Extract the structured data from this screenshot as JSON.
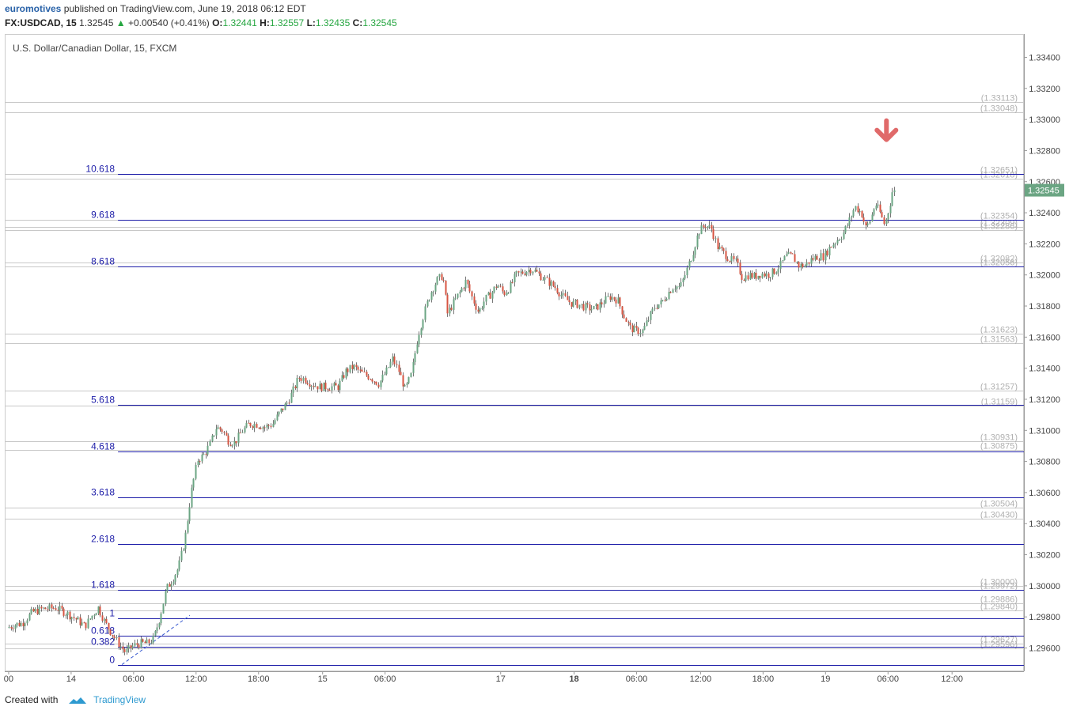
{
  "header": {
    "author": "euromotives",
    "published": "published on TradingView.com, June 19, 2018 06:12 EDT",
    "symbol": "FX:USDCAD, 15",
    "last": "1.32545",
    "change_arrow": "▲",
    "change": "+0.00540 (+0.41%)",
    "open_label": "O:",
    "open": "1.32441",
    "high_label": "H:",
    "high": "1.32557",
    "low_label": "L:",
    "low": "1.32435",
    "close_label": "C:",
    "close": "1.32545"
  },
  "footer": {
    "created_with": "Created with",
    "brand": "TradingView",
    "logo_icon": "tradingview-cloud-icon"
  },
  "colors": {
    "bull": "#6ba583",
    "bear": "#d75442",
    "fib_line": "#1c1ca8",
    "gray_line": "#c8c8c8",
    "arrow": "#e06a6a",
    "price_tag": "#6ba583"
  },
  "chart_data": {
    "type": "candlestick",
    "title": "U.S. Dollar/Canadian Dollar, 15, FXCM",
    "y_range": [
      1.2945,
      1.3355
    ],
    "x_range": [
      -5,
      1300
    ],
    "y_ticks": [
      {
        "value": 1.334,
        "label": "1.33400"
      },
      {
        "value": 1.332,
        "label": "1.33200"
      },
      {
        "value": 1.33,
        "label": "1.33000"
      },
      {
        "value": 1.328,
        "label": "1.32800"
      },
      {
        "value": 1.326,
        "label": "1.32600"
      },
      {
        "value": 1.324,
        "label": "1.32400"
      },
      {
        "value": 1.322,
        "label": "1.32200"
      },
      {
        "value": 1.32,
        "label": "1.32000"
      },
      {
        "value": 1.318,
        "label": "1.31800"
      },
      {
        "value": 1.316,
        "label": "1.31600"
      },
      {
        "value": 1.314,
        "label": "1.31400"
      },
      {
        "value": 1.312,
        "label": "1.31200"
      },
      {
        "value": 1.31,
        "label": "1.31000"
      },
      {
        "value": 1.308,
        "label": "1.30800"
      },
      {
        "value": 1.306,
        "label": "1.30600"
      },
      {
        "value": 1.304,
        "label": "1.30400"
      },
      {
        "value": 1.302,
        "label": "1.30200"
      },
      {
        "value": 1.3,
        "label": "1.30000"
      },
      {
        "value": 1.298,
        "label": "1.29800"
      },
      {
        "value": 1.296,
        "label": "1.29600"
      }
    ],
    "x_ticks": [
      {
        "value": 0,
        "label": "00",
        "bold": false
      },
      {
        "value": 80,
        "label": "14",
        "bold": false
      },
      {
        "value": 160,
        "label": "06:00",
        "bold": false
      },
      {
        "value": 240,
        "label": "12:00",
        "bold": false
      },
      {
        "value": 320,
        "label": "18:00",
        "bold": false
      },
      {
        "value": 402,
        "label": "15",
        "bold": false
      },
      {
        "value": 482,
        "label": "06:00",
        "bold": false
      },
      {
        "value": 630,
        "label": "17",
        "bold": false
      },
      {
        "value": 724,
        "label": "18",
        "bold": true
      },
      {
        "value": 804,
        "label": "06:00",
        "bold": false
      },
      {
        "value": 886,
        "label": "12:00",
        "bold": false
      },
      {
        "value": 966,
        "label": "18:00",
        "bold": false
      },
      {
        "value": 1046,
        "label": "19",
        "bold": false
      },
      {
        "value": 1126,
        "label": "06:00",
        "bold": false
      },
      {
        "value": 1208,
        "label": "12:00",
        "bold": false
      }
    ],
    "fib_levels": [
      {
        "label": "10.618",
        "price": 1.32651
      },
      {
        "label": "9.618",
        "price": 1.32354
      },
      {
        "label": "8.618",
        "price": 1.32056
      },
      {
        "label": "5.618",
        "price": 1.31163
      },
      {
        "label": "4.618",
        "price": 1.30866
      },
      {
        "label": "3.618",
        "price": 1.30569
      },
      {
        "label": "2.618",
        "price": 1.30271
      },
      {
        "label": "1.618",
        "price": 1.29974
      },
      {
        "label": "1",
        "price": 1.2979
      },
      {
        "label": "0.618",
        "price": 1.29677
      },
      {
        "label": "0.382",
        "price": 1.29607
      },
      {
        "label": "0",
        "price": 1.29493
      }
    ],
    "level_lines": [
      {
        "price": 1.33113,
        "label": "1.33113"
      },
      {
        "price": 1.33048,
        "label": "1.33048"
      },
      {
        "price": 1.32651,
        "label": "1.32651"
      },
      {
        "price": 1.32618,
        "label": "1.32618"
      },
      {
        "price": 1.32354,
        "label": "1.32354"
      },
      {
        "price": 1.32309,
        "label": "1.32309"
      },
      {
        "price": 1.32286,
        "label": "1.32286"
      },
      {
        "price": 1.32082,
        "label": "1.32082"
      },
      {
        "price": 1.32056,
        "label": "1.32056"
      },
      {
        "price": 1.31623,
        "label": "1.31623"
      },
      {
        "price": 1.31563,
        "label": "1.31563"
      },
      {
        "price": 1.31257,
        "label": "1.31257"
      },
      {
        "price": 1.31159,
        "label": "1.31159"
      },
      {
        "price": 1.30931,
        "label": "1.30931"
      },
      {
        "price": 1.30875,
        "label": "1.30875"
      },
      {
        "price": 1.30504,
        "label": "1.30504"
      },
      {
        "price": 1.3043,
        "label": "1.30430"
      },
      {
        "price": 1.3,
        "label": "1.30000"
      },
      {
        "price": 1.29972,
        "label": "1.29972"
      },
      {
        "price": 1.29886,
        "label": "1.29886"
      },
      {
        "price": 1.2984,
        "label": "1.29840"
      },
      {
        "price": 1.29627,
        "label": "1.29627"
      },
      {
        "price": 1.29596,
        "label": "1.29596"
      }
    ],
    "last_price": {
      "value": 1.32545,
      "label": "1.32545"
    },
    "trend_line": {
      "x1": 145,
      "y1": 1.29493,
      "x2": 232,
      "y2": 1.2981
    },
    "arrow_marker": {
      "x": 1124,
      "price": 1.3285
    },
    "path": [
      [
        0,
        1.2973
      ],
      [
        10,
        1.2975
      ],
      [
        20,
        1.2976
      ],
      [
        32,
        1.2983
      ],
      [
        45,
        1.2985
      ],
      [
        62,
        1.2986
      ],
      [
        78,
        1.2982
      ],
      [
        90,
        1.2978
      ],
      [
        100,
        1.2974
      ],
      [
        108,
        1.298
      ],
      [
        117,
        1.2986
      ],
      [
        126,
        1.2976
      ],
      [
        136,
        1.2968
      ],
      [
        144,
        1.2962
      ],
      [
        152,
        1.2957
      ],
      [
        160,
        1.2961
      ],
      [
        170,
        1.2963
      ],
      [
        180,
        1.2963
      ],
      [
        188,
        1.2966
      ],
      [
        196,
        1.298
      ],
      [
        204,
        1.2998
      ],
      [
        212,
        1.3004
      ],
      [
        220,
        1.3012
      ],
      [
        228,
        1.303
      ],
      [
        236,
        1.306
      ],
      [
        244,
        1.3081
      ],
      [
        252,
        1.3084
      ],
      [
        260,
        1.3091
      ],
      [
        268,
        1.3102
      ],
      [
        276,
        1.31
      ],
      [
        284,
        1.3093
      ],
      [
        292,
        1.3092
      ],
      [
        300,
        1.3099
      ],
      [
        310,
        1.3104
      ],
      [
        320,
        1.3104
      ],
      [
        330,
        1.3102
      ],
      [
        340,
        1.3104
      ],
      [
        350,
        1.3112
      ],
      [
        358,
        1.3117
      ],
      [
        366,
        1.3125
      ],
      [
        374,
        1.3134
      ],
      [
        382,
        1.3133
      ],
      [
        390,
        1.313
      ],
      [
        400,
        1.3128
      ],
      [
        412,
        1.3128
      ],
      [
        424,
        1.3128
      ],
      [
        434,
        1.3138
      ],
      [
        444,
        1.3141
      ],
      [
        454,
        1.3137
      ],
      [
        466,
        1.3134
      ],
      [
        476,
        1.313
      ],
      [
        486,
        1.3138
      ],
      [
        494,
        1.3146
      ],
      [
        502,
        1.3138
      ],
      [
        510,
        1.3126
      ],
      [
        518,
        1.3136
      ],
      [
        526,
        1.316
      ],
      [
        534,
        1.3175
      ],
      [
        542,
        1.3188
      ],
      [
        550,
        1.3196
      ],
      [
        558,
        1.32
      ],
      [
        564,
        1.3175
      ],
      [
        572,
        1.3182
      ],
      [
        580,
        1.3189
      ],
      [
        588,
        1.3196
      ],
      [
        596,
        1.3185
      ],
      [
        604,
        1.3176
      ],
      [
        612,
        1.3184
      ],
      [
        620,
        1.3188
      ],
      [
        628,
        1.3194
      ],
      [
        636,
        1.3188
      ],
      [
        644,
        1.3192
      ],
      [
        652,
        1.32
      ],
      [
        662,
        1.3202
      ],
      [
        672,
        1.3204
      ],
      [
        682,
        1.32
      ],
      [
        692,
        1.3196
      ],
      [
        702,
        1.3192
      ],
      [
        712,
        1.3186
      ],
      [
        722,
        1.3182
      ],
      [
        732,
        1.3181
      ],
      [
        742,
        1.3179
      ],
      [
        752,
        1.3178
      ],
      [
        762,
        1.3182
      ],
      [
        772,
        1.3186
      ],
      [
        782,
        1.3184
      ],
      [
        790,
        1.3174
      ],
      [
        798,
        1.3166
      ],
      [
        806,
        1.3164
      ],
      [
        814,
        1.3164
      ],
      [
        822,
        1.3172
      ],
      [
        830,
        1.318
      ],
      [
        838,
        1.3182
      ],
      [
        846,
        1.3188
      ],
      [
        854,
        1.3193
      ],
      [
        862,
        1.3192
      ],
      [
        870,
        1.3202
      ],
      [
        878,
        1.3214
      ],
      [
        886,
        1.3228
      ],
      [
        894,
        1.3232
      ],
      [
        902,
        1.323
      ],
      [
        910,
        1.3218
      ],
      [
        918,
        1.3214
      ],
      [
        926,
        1.321
      ],
      [
        934,
        1.3208
      ],
      [
        942,
        1.3198
      ],
      [
        950,
        1.32
      ],
      [
        958,
        1.3199
      ],
      [
        966,
        1.3201
      ],
      [
        974,
        1.32
      ],
      [
        982,
        1.3202
      ],
      [
        990,
        1.3206
      ],
      [
        998,
        1.3212
      ],
      [
        1006,
        1.3212
      ],
      [
        1014,
        1.3206
      ],
      [
        1022,
        1.3206
      ],
      [
        1030,
        1.321
      ],
      [
        1038,
        1.3212
      ],
      [
        1046,
        1.3212
      ],
      [
        1054,
        1.3218
      ],
      [
        1062,
        1.3222
      ],
      [
        1070,
        1.3226
      ],
      [
        1078,
        1.3234
      ],
      [
        1086,
        1.3244
      ],
      [
        1094,
        1.324
      ],
      [
        1100,
        1.323
      ],
      [
        1106,
        1.3236
      ],
      [
        1112,
        1.3246
      ],
      [
        1118,
        1.324
      ],
      [
        1124,
        1.3232
      ],
      [
        1130,
        1.3244
      ],
      [
        1134,
        1.32545
      ]
    ]
  }
}
